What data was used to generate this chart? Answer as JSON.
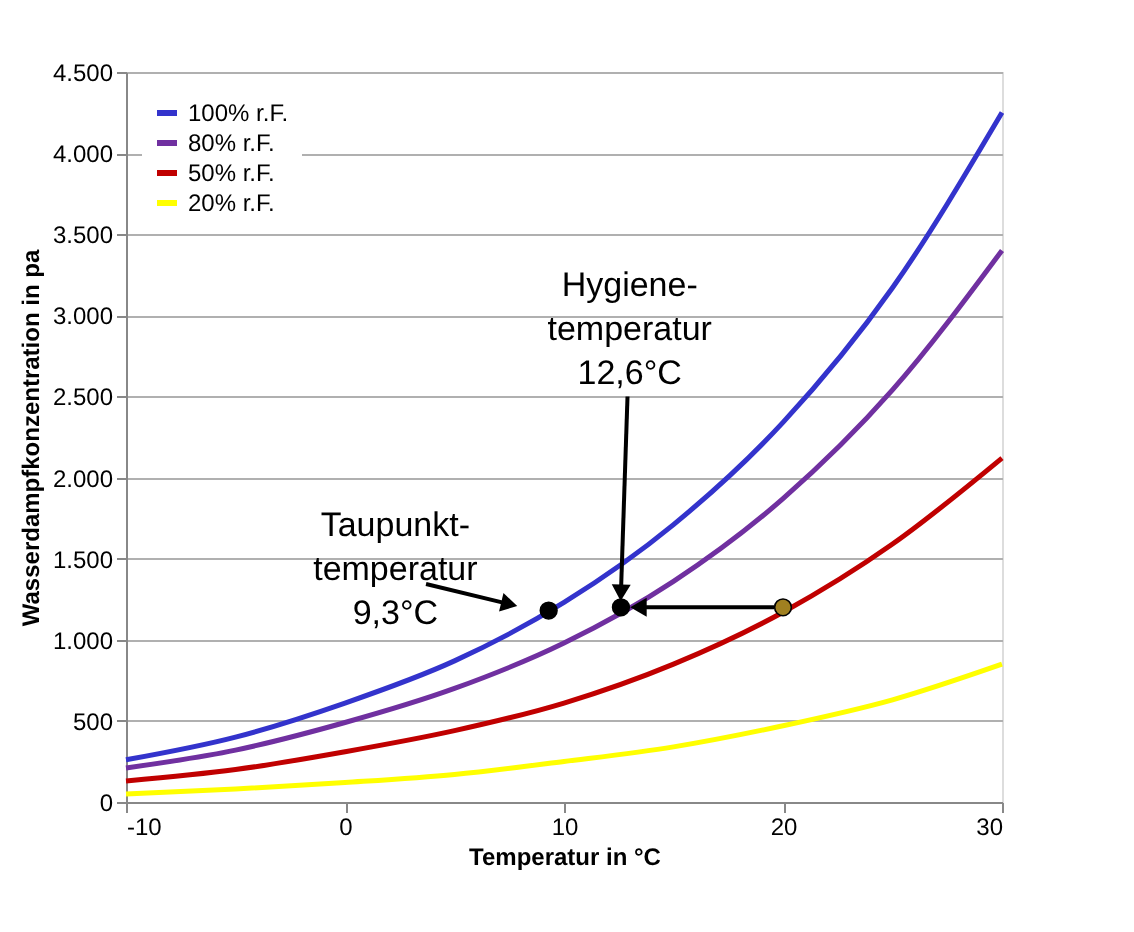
{
  "chart_data": {
    "type": "line",
    "xlabel": "Temperatur in °C",
    "ylabel": "Wasserdampfkonzentration in pa",
    "x": [
      -10,
      -5,
      0,
      5,
      10,
      15,
      20,
      25,
      30
    ],
    "series": [
      {
        "name": "100% r.F.",
        "color": "#3333cc",
        "values": [
          260,
          400,
          610,
          870,
          1230,
          1710,
          2340,
          3170,
          4250
        ]
      },
      {
        "name": "80% r.F.",
        "color": "#7030a0",
        "values": [
          210,
          320,
          490,
          700,
          980,
          1360,
          1870,
          2540,
          3400
        ]
      },
      {
        "name": "50% r.F.",
        "color": "#c00000",
        "values": [
          130,
          200,
          310,
          440,
          610,
          850,
          1170,
          1590,
          2120
        ]
      },
      {
        "name": "20% r.F.",
        "color": "#ffff00",
        "values": [
          50,
          80,
          120,
          170,
          250,
          340,
          470,
          630,
          850
        ]
      },
      {
        "type": "scatter",
        "marker": "circle",
        "x": [
          9.3,
          12.6,
          20
        ],
        "values": [
          1180,
          1200,
          1200
        ],
        "colors": [
          "#000000",
          "#000000",
          "#a08020"
        ]
      }
    ],
    "annotations": [
      {
        "text": "Taupunkt-\ntemperatur\n9,3°C",
        "x": 9.3,
        "y": 1180
      },
      {
        "text": "Hygiene-\ntemperatur\n12,6°C",
        "x": 12.6,
        "y": 1200
      }
    ],
    "xlim": [
      -10,
      30
    ],
    "xticks": [
      -10,
      0,
      10,
      20,
      30
    ],
    "ylim": [
      0,
      4500
    ],
    "yticks": [
      0,
      500,
      {
        "value": 1000,
        "label": "1.000"
      },
      {
        "value": 1500,
        "label": "1.500"
      },
      {
        "value": 2000,
        "label": "2.000"
      },
      {
        "value": 2500,
        "label": "2.500"
      },
      {
        "value": 3000,
        "label": "3.000"
      },
      {
        "value": 3500,
        "label": "3.500"
      },
      {
        "value": 4000,
        "label": "4.000"
      },
      {
        "value": 4500,
        "label": "4.500"
      }
    ],
    "grid": "y",
    "legend": "top left",
    "marker": "none",
    "line_style": "solid"
  }
}
